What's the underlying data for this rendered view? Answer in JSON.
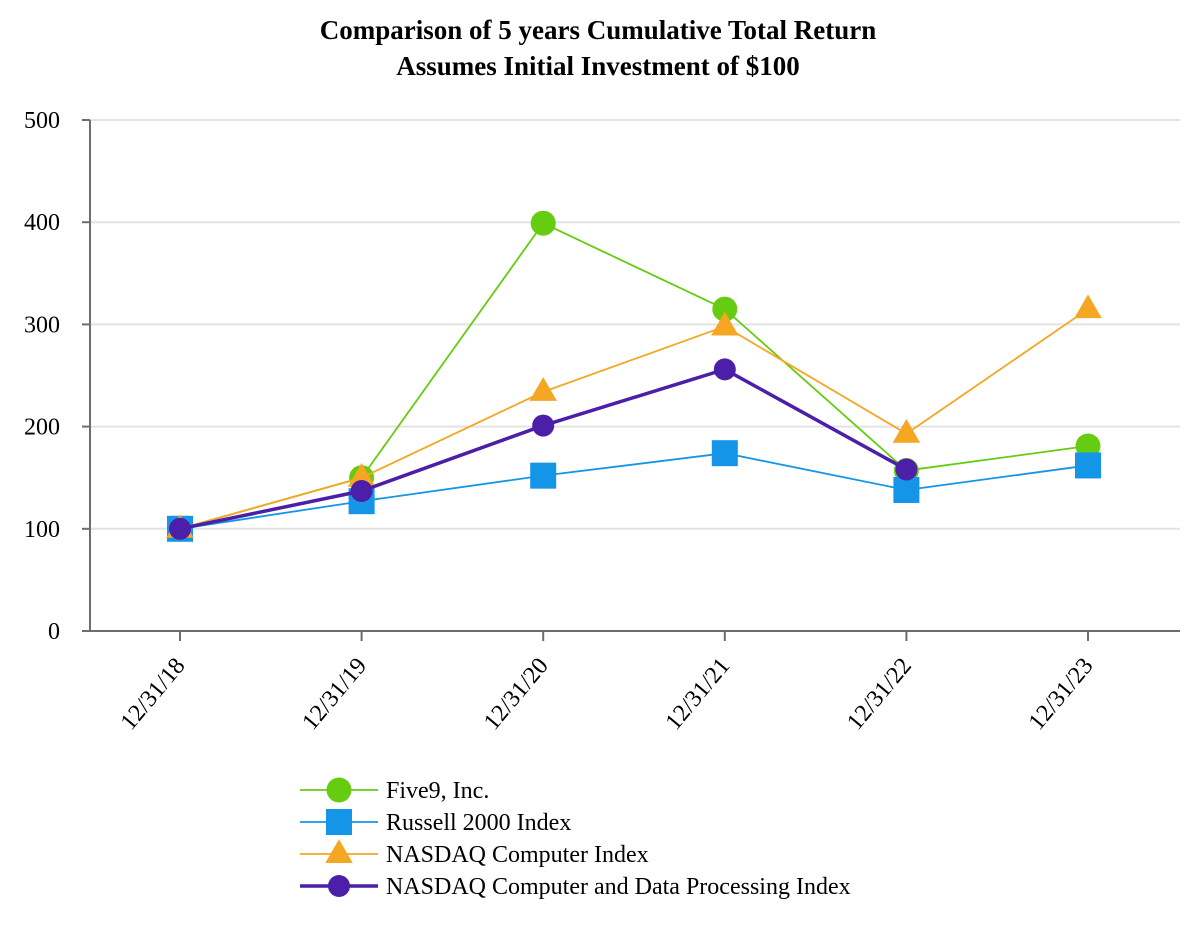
{
  "chart_data": {
    "type": "line",
    "title": "Comparison of 5 years Cumulative Total Return",
    "subtitle": "Assumes Initial Investment of $100",
    "xlabel": "",
    "ylabel": "",
    "categories": [
      "12/31/18",
      "12/31/19",
      "12/31/20",
      "12/31/21",
      "12/31/22",
      "12/31/23"
    ],
    "ylim": [
      0,
      500
    ],
    "yticks": [
      "0",
      "100",
      "200",
      "300",
      "400",
      "500"
    ],
    "grid": true,
    "legend_position": "bottom",
    "series": [
      {
        "name": "Five9, Inc.",
        "marker": "circle",
        "color": "#66cc11",
        "emphasis": false,
        "values": [
          100,
          150,
          399,
          315,
          157,
          181
        ]
      },
      {
        "name": "Russell 2000 Index",
        "marker": "square",
        "color": "#1595e8",
        "emphasis": false,
        "values": [
          100,
          127,
          152,
          174,
          138,
          162
        ]
      },
      {
        "name": "NASDAQ Computer Index",
        "marker": "triangle",
        "color": "#f5a623",
        "emphasis": false,
        "values": [
          100,
          150,
          234,
          298,
          193,
          315
        ]
      },
      {
        "name": "NASDAQ Computer and Data Processing Index",
        "marker": "circle",
        "color": "#4b1fa8",
        "emphasis": true,
        "values": [
          100,
          137,
          201,
          256,
          158,
          null
        ]
      }
    ]
  }
}
